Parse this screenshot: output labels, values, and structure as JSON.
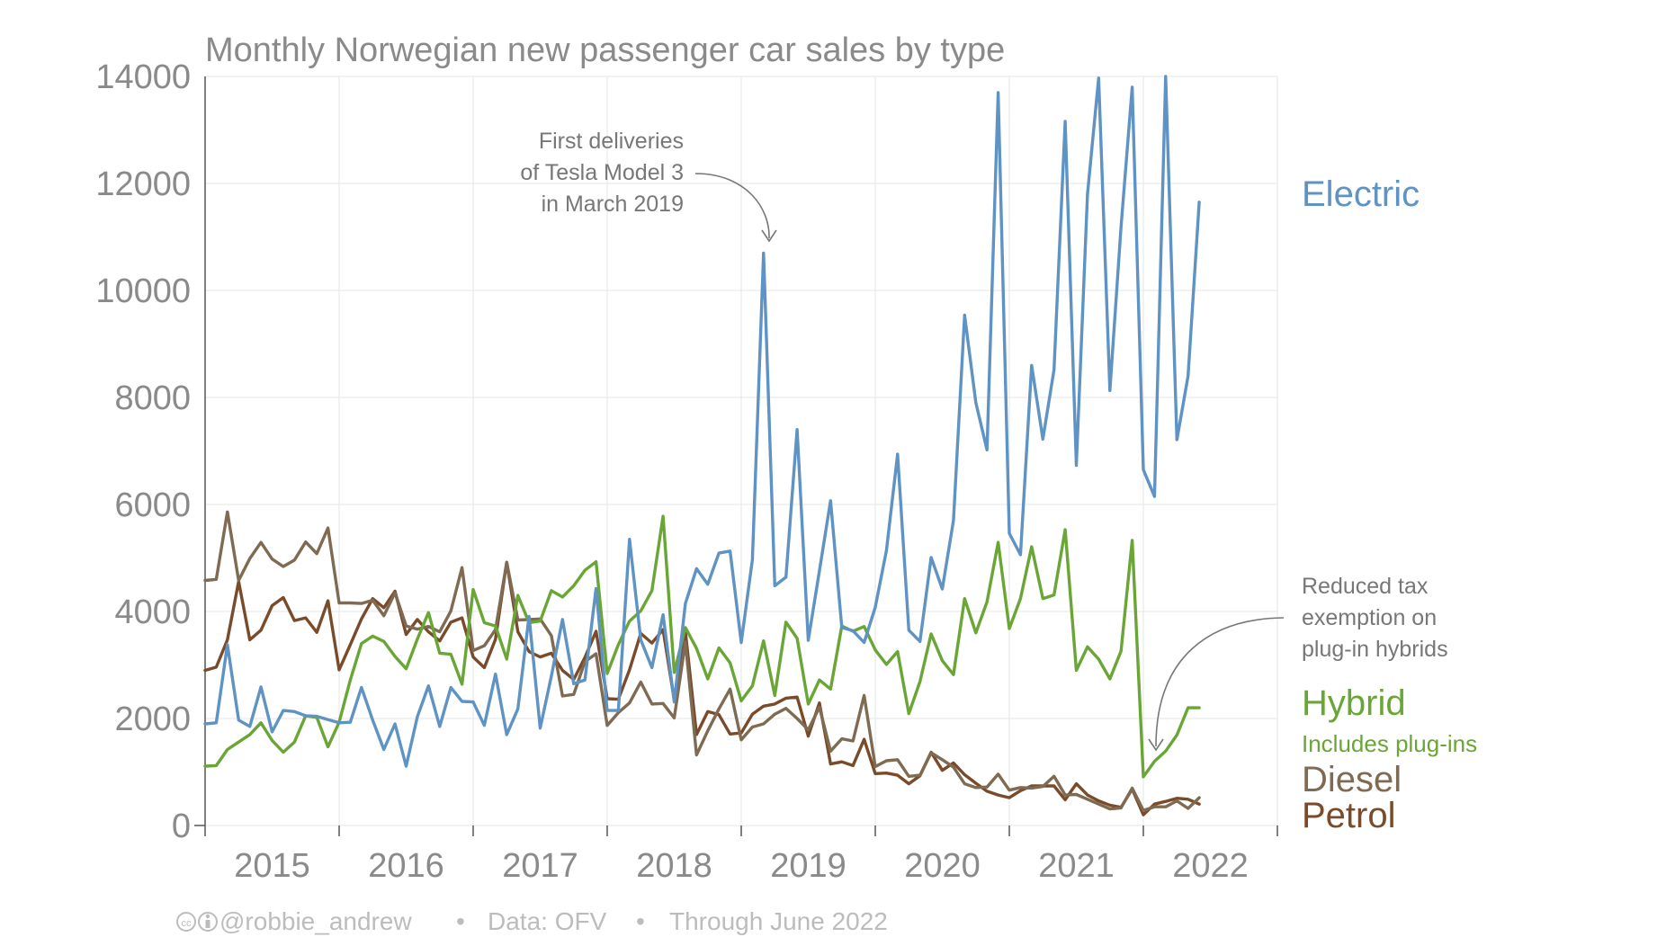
{
  "chart_data": {
    "type": "line",
    "title": "Monthly Norwegian new passenger car sales by type",
    "xlabel": "",
    "ylabel": "",
    "ylim": [
      0,
      14000
    ],
    "y_ticks": [
      0,
      2000,
      4000,
      6000,
      8000,
      10000,
      12000,
      14000
    ],
    "y_tick_labels": [
      "0",
      "2000",
      "4000",
      "6000",
      "8000",
      "10000",
      "12000",
      "14000"
    ],
    "x_start": "2015-01",
    "x_end": "2022-06",
    "xlim": [
      "2015-01",
      "2023-01"
    ],
    "x_tick_labels": [
      "2015",
      "2016",
      "2017",
      "2018",
      "2019",
      "2020",
      "2021",
      "2022"
    ],
    "grid": true,
    "legend_placement": "right",
    "series": [
      {
        "name": "Electric",
        "color": "#5e93c4",
        "values": [
          1900,
          1920,
          3380,
          1970,
          1850,
          2590,
          1750,
          2150,
          2130,
          2050,
          2040,
          1980,
          1920,
          1930,
          2580,
          1970,
          1420,
          1900,
          1110,
          2030,
          2610,
          1850,
          2580,
          2320,
          2310,
          1870,
          2830,
          1700,
          2180,
          3910,
          1820,
          2790,
          3850,
          2650,
          2720,
          4430,
          2150,
          2150,
          5350,
          3470,
          2950,
          3940,
          2310,
          4150,
          4800,
          4510,
          5090,
          5130,
          3420,
          4970,
          10700,
          4480,
          4640,
          7400,
          3460,
          4760,
          6070,
          3700,
          3640,
          3420,
          4080,
          5140,
          6940,
          3650,
          3440,
          5010,
          4420,
          5700,
          9540,
          7900,
          7020,
          13700,
          5460,
          5060,
          8600,
          7220,
          8520,
          13160,
          6730,
          11800,
          13970,
          8130,
          11190,
          13800,
          6650,
          6150,
          14000,
          7210,
          8400,
          11650
        ],
        "label": "Electric"
      },
      {
        "name": "Hybrid",
        "color": "#6aa636",
        "values": [
          1110,
          1120,
          1420,
          1560,
          1700,
          1920,
          1590,
          1370,
          1560,
          2050,
          2020,
          1470,
          1930,
          2720,
          3400,
          3540,
          3440,
          3160,
          2930,
          3480,
          3980,
          3220,
          3200,
          2640,
          4410,
          3790,
          3730,
          3110,
          4300,
          3790,
          3820,
          4390,
          4270,
          4480,
          4770,
          4930,
          2840,
          3380,
          3820,
          4010,
          4390,
          5780,
          2860,
          3700,
          3310,
          2740,
          3320,
          3040,
          2330,
          2610,
          3450,
          2430,
          3800,
          3500,
          2270,
          2720,
          2550,
          3730,
          3630,
          3720,
          3280,
          3010,
          3250,
          2090,
          2690,
          3580,
          3080,
          2820,
          4240,
          3600,
          4180,
          5290,
          3680,
          4240,
          5210,
          4240,
          4310,
          5530,
          2900,
          3340,
          3110,
          2740,
          3260,
          5330,
          910,
          1200,
          1390,
          1690,
          2200,
          2200
        ],
        "label": "Hybrid",
        "sublabel": "Includes plug-ins"
      },
      {
        "name": "Diesel",
        "color": "#7f6a52",
        "values": [
          4580,
          4600,
          5860,
          4580,
          4990,
          5290,
          4980,
          4840,
          4960,
          5300,
          5080,
          5560,
          4160,
          4160,
          4150,
          4210,
          3920,
          4350,
          3730,
          3670,
          3720,
          3620,
          4010,
          4820,
          3270,
          3360,
          3660,
          4920,
          3840,
          3850,
          3860,
          3550,
          2420,
          2450,
          3060,
          3210,
          1870,
          2110,
          2290,
          2680,
          2270,
          2280,
          2010,
          3430,
          1320,
          1770,
          2180,
          2550,
          1600,
          1840,
          1900,
          2080,
          2190,
          2000,
          1790,
          2210,
          1390,
          1620,
          1580,
          2430,
          1100,
          1210,
          1230,
          920,
          940,
          1360,
          1230,
          1090,
          780,
          710,
          720,
          960,
          660,
          710,
          700,
          730,
          920,
          570,
          580,
          490,
          400,
          310,
          330,
          700,
          280,
          350,
          350,
          460,
          320,
          520
        ],
        "label": "Diesel"
      },
      {
        "name": "Petrol",
        "color": "#7a4b2a",
        "values": [
          2900,
          2960,
          3470,
          4560,
          3470,
          3650,
          4110,
          4260,
          3830,
          3880,
          3610,
          4200,
          2910,
          3380,
          3860,
          4240,
          4070,
          4380,
          3570,
          3850,
          3620,
          3450,
          3800,
          3880,
          3150,
          2950,
          3480,
          4920,
          3620,
          3250,
          3150,
          3220,
          2900,
          2730,
          3140,
          3630,
          2370,
          2360,
          2910,
          3590,
          3410,
          3660,
          2350,
          3630,
          1700,
          2130,
          2070,
          1710,
          1730,
          2080,
          2230,
          2270,
          2380,
          2400,
          1670,
          2290,
          1150,
          1190,
          1120,
          1610,
          970,
          980,
          940,
          780,
          930,
          1370,
          1030,
          1170,
          950,
          790,
          640,
          570,
          520,
          650,
          740,
          740,
          740,
          480,
          780,
          570,
          460,
          380,
          340,
          680,
          200,
          400,
          450,
          510,
          490,
          400
        ],
        "label": "Petrol"
      }
    ],
    "annotations": [
      {
        "lines": [
          "First deliveries",
          "of Tesla Model 3",
          "in March 2019"
        ],
        "target_date": "2019-03",
        "target_value": 10700
      },
      {
        "lines": [
          "Reduced tax",
          "exemption on",
          "plug-in hybrids"
        ],
        "target_date": "2022-01",
        "target_value": 910
      }
    ]
  },
  "footer": {
    "cc_icon": "creative-commons-icon",
    "attribution_icon": "attribution-icon",
    "author": "@robbie_andrew",
    "separator": "•",
    "data_source": "Data: OFV",
    "through": "Through June 2022"
  }
}
